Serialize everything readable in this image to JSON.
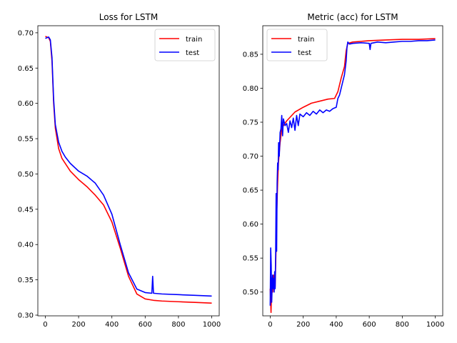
{
  "chart_data": [
    {
      "type": "line",
      "title": "Loss for LSTM",
      "xlabel": "",
      "ylabel": "",
      "xlim": [
        -45,
        1045
      ],
      "ylim": [
        0.299,
        0.71
      ],
      "x_ticks": [
        0,
        200,
        400,
        600,
        800,
        1000
      ],
      "x_tick_labels": [
        "0",
        "200",
        "400",
        "600",
        "800",
        "1000"
      ],
      "y_ticks": [
        0.3,
        0.35,
        0.4,
        0.45,
        0.5,
        0.55,
        0.6,
        0.65,
        0.7
      ],
      "y_tick_labels": [
        "0.30",
        "0.35",
        "0.40",
        "0.45",
        "0.50",
        "0.55",
        "0.60",
        "0.65",
        "0.70"
      ],
      "grid": false,
      "legend": "top-right",
      "series": [
        {
          "name": "train",
          "color": "#ff0000",
          "points": [
            [
              0,
              0.695
            ],
            [
              10,
              0.694
            ],
            [
              20,
              0.693
            ],
            [
              30,
              0.688
            ],
            [
              40,
              0.66
            ],
            [
              50,
              0.6
            ],
            [
              60,
              0.565
            ],
            [
              80,
              0.536
            ],
            [
              100,
              0.522
            ],
            [
              150,
              0.504
            ],
            [
              200,
              0.492
            ],
            [
              250,
              0.482
            ],
            [
              300,
              0.47
            ],
            [
              350,
              0.456
            ],
            [
              400,
              0.432
            ],
            [
              450,
              0.395
            ],
            [
              500,
              0.355
            ],
            [
              550,
              0.33
            ],
            [
              600,
              0.323
            ],
            [
              650,
              0.321
            ],
            [
              700,
              0.32
            ],
            [
              800,
              0.319
            ],
            [
              900,
              0.318
            ],
            [
              1000,
              0.317
            ]
          ]
        },
        {
          "name": "test",
          "color": "#0000ff",
          "points": [
            [
              0,
              0.692
            ],
            [
              10,
              0.693
            ],
            [
              20,
              0.694
            ],
            [
              30,
              0.69
            ],
            [
              40,
              0.665
            ],
            [
              50,
              0.605
            ],
            [
              60,
              0.57
            ],
            [
              80,
              0.545
            ],
            [
              100,
              0.532
            ],
            [
              120,
              0.524
            ],
            [
              150,
              0.515
            ],
            [
              200,
              0.504
            ],
            [
              250,
              0.497
            ],
            [
              300,
              0.487
            ],
            [
              350,
              0.47
            ],
            [
              400,
              0.443
            ],
            [
              450,
              0.4
            ],
            [
              500,
              0.36
            ],
            [
              550,
              0.337
            ],
            [
              600,
              0.332
            ],
            [
              640,
              0.331
            ],
            [
              645,
              0.355
            ],
            [
              650,
              0.331
            ],
            [
              700,
              0.33
            ],
            [
              800,
              0.329
            ],
            [
              900,
              0.328
            ],
            [
              1000,
              0.327
            ]
          ]
        }
      ]
    },
    {
      "type": "line",
      "title": "Metric (acc) for LSTM",
      "xlabel": "",
      "ylabel": "",
      "xlim": [
        -45,
        1045
      ],
      "ylim": [
        0.465,
        0.892
      ],
      "x_ticks": [
        0,
        200,
        400,
        600,
        800,
        1000
      ],
      "x_tick_labels": [
        "0",
        "200",
        "400",
        "600",
        "800",
        "1000"
      ],
      "y_ticks": [
        0.5,
        0.55,
        0.6,
        0.65,
        0.7,
        0.75,
        0.8,
        0.85
      ],
      "y_tick_labels": [
        "0.50",
        "0.55",
        "0.60",
        "0.65",
        "0.70",
        "0.75",
        "0.80",
        "0.85"
      ],
      "grid": false,
      "legend": "top-left",
      "series": [
        {
          "name": "train",
          "color": "#ff0000",
          "points": [
            [
              0,
              0.505
            ],
            [
              5,
              0.47
            ],
            [
              10,
              0.52
            ],
            [
              15,
              0.5
            ],
            [
              20,
              0.525
            ],
            [
              25,
              0.51
            ],
            [
              30,
              0.508
            ],
            [
              35,
              0.56
            ],
            [
              40,
              0.62
            ],
            [
              45,
              0.66
            ],
            [
              50,
              0.69
            ],
            [
              60,
              0.72
            ],
            [
              70,
              0.74
            ],
            [
              80,
              0.745
            ],
            [
              100,
              0.752
            ],
            [
              150,
              0.765
            ],
            [
              200,
              0.772
            ],
            [
              250,
              0.778
            ],
            [
              300,
              0.781
            ],
            [
              350,
              0.784
            ],
            [
              390,
              0.785
            ],
            [
              410,
              0.795
            ],
            [
              430,
              0.815
            ],
            [
              450,
              0.832
            ],
            [
              460,
              0.855
            ],
            [
              470,
              0.866
            ],
            [
              500,
              0.868
            ],
            [
              550,
              0.869
            ],
            [
              600,
              0.87
            ],
            [
              700,
              0.871
            ],
            [
              800,
              0.872
            ],
            [
              900,
              0.872
            ],
            [
              1000,
              0.873
            ]
          ]
        },
        {
          "name": "test",
          "color": "#0000ff",
          "points": [
            [
              0,
              0.48
            ],
            [
              3,
              0.565
            ],
            [
              6,
              0.54
            ],
            [
              9,
              0.485
            ],
            [
              12,
              0.51
            ],
            [
              15,
              0.525
            ],
            [
              18,
              0.505
            ],
            [
              21,
              0.52
            ],
            [
              24,
              0.5
            ],
            [
              27,
              0.53
            ],
            [
              30,
              0.505
            ],
            [
              33,
              0.555
            ],
            [
              36,
              0.645
            ],
            [
              39,
              0.56
            ],
            [
              42,
              0.66
            ],
            [
              45,
              0.69
            ],
            [
              48,
              0.68
            ],
            [
              51,
              0.72
            ],
            [
              55,
              0.7
            ],
            [
              60,
              0.735
            ],
            [
              65,
              0.74
            ],
            [
              70,
              0.76
            ],
            [
              75,
              0.73
            ],
            [
              80,
              0.755
            ],
            [
              90,
              0.745
            ],
            [
              100,
              0.748
            ],
            [
              110,
              0.735
            ],
            [
              120,
              0.752
            ],
            [
              130,
              0.742
            ],
            [
              140,
              0.756
            ],
            [
              150,
              0.738
            ],
            [
              160,
              0.76
            ],
            [
              170,
              0.745
            ],
            [
              180,
              0.762
            ],
            [
              200,
              0.758
            ],
            [
              220,
              0.764
            ],
            [
              240,
              0.76
            ],
            [
              260,
              0.766
            ],
            [
              280,
              0.762
            ],
            [
              300,
              0.768
            ],
            [
              320,
              0.764
            ],
            [
              340,
              0.768
            ],
            [
              360,
              0.766
            ],
            [
              380,
              0.77
            ],
            [
              400,
              0.772
            ],
            [
              410,
              0.785
            ],
            [
              420,
              0.79
            ],
            [
              430,
              0.8
            ],
            [
              440,
              0.81
            ],
            [
              450,
              0.82
            ],
            [
              460,
              0.84
            ],
            [
              465,
              0.86
            ],
            [
              470,
              0.868
            ],
            [
              480,
              0.865
            ],
            [
              500,
              0.866
            ],
            [
              550,
              0.867
            ],
            [
              600,
              0.866
            ],
            [
              605,
              0.857
            ],
            [
              610,
              0.866
            ],
            [
              650,
              0.868
            ],
            [
              700,
              0.867
            ],
            [
              750,
              0.868
            ],
            [
              800,
              0.869
            ],
            [
              850,
              0.869
            ],
            [
              900,
              0.87
            ],
            [
              950,
              0.87
            ],
            [
              1000,
              0.871
            ]
          ]
        }
      ]
    }
  ]
}
